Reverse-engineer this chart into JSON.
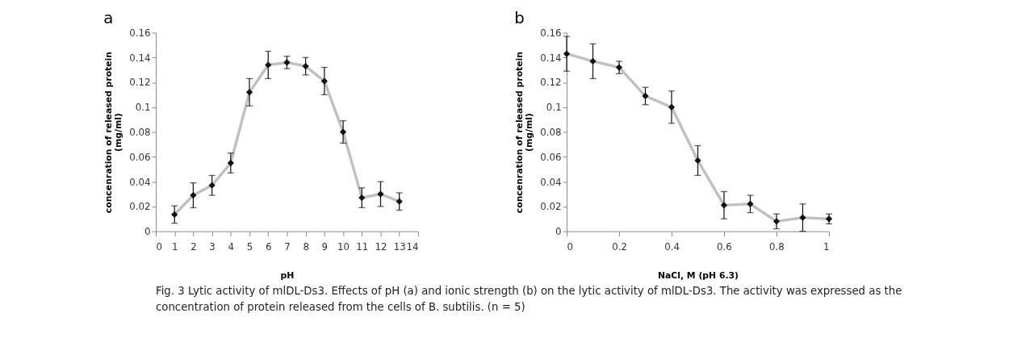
{
  "chart_data": [
    {
      "type": "line",
      "title": "a",
      "xlabel": "pH",
      "ylabel": "concenration of released protein (mg/ml)",
      "x": [
        1,
        2,
        3,
        4,
        5,
        6,
        7,
        8,
        9,
        10,
        11,
        12,
        13
      ],
      "series": [
        {
          "color": "#c0c0c0",
          "values": [
            0.0135,
            0.029,
            0.037,
            0.055,
            0.112,
            0.134,
            0.136,
            0.133,
            0.121,
            0.08,
            0.027,
            0.03,
            0.024
          ],
          "errors": [
            0.007,
            0.01,
            0.008,
            0.008,
            0.011,
            0.011,
            0.005,
            0.007,
            0.011,
            0.009,
            0.008,
            0.01,
            0.007
          ]
        }
      ],
      "xlim": [
        0,
        14
      ],
      "xticks": [
        0,
        1,
        2,
        3,
        4,
        5,
        6,
        7,
        8,
        9,
        10,
        11,
        12,
        13,
        14
      ],
      "ylim": [
        0,
        0.16
      ],
      "yticks": [
        0,
        0.02,
        0.04,
        0.06,
        0.08,
        0.1,
        0.12,
        0.14,
        0.16
      ],
      "grid": false,
      "marker": "diamond",
      "line_style": "solid",
      "annotations": [
        "Fig. 3 Lytic activity of mlDL-Ds3. Effects of pH (a) and ionic strength (b) on the lytic activity of mlDL-Ds3. The activity was expressed as the concentration of protein released from the cells of B. subtilis. (n = 5)"
      ]
    },
    {
      "type": "line",
      "title": "b",
      "xlabel": "NaCl, M (pH 6.3)",
      "ylabel": "concenration of released protein (mg/ml)",
      "x": [
        0,
        0.1,
        0.2,
        0.3,
        0.4,
        0.5,
        0.6,
        0.7,
        0.8,
        0.9,
        1
      ],
      "series": [
        {
          "color": "#c0c0c0",
          "values": [
            0.143,
            0.137,
            0.132,
            0.109,
            0.1,
            0.057,
            0.021,
            0.022,
            0.008,
            0.011,
            0.01
          ],
          "errors": [
            0.014,
            0.014,
            0.005,
            0.007,
            0.013,
            0.012,
            0.011,
            0.007,
            0.006,
            0.011,
            0.004
          ]
        }
      ],
      "xlim": [
        0,
        1
      ],
      "xticks": [
        0,
        0.2,
        0.4,
        0.6,
        0.8,
        1
      ],
      "ylim": [
        0,
        0.16
      ],
      "yticks": [
        0,
        0.02,
        0.04,
        0.06,
        0.08,
        0.1,
        0.12,
        0.14,
        0.16
      ],
      "grid": false,
      "marker": "diamond",
      "line_style": "solid"
    }
  ]
}
